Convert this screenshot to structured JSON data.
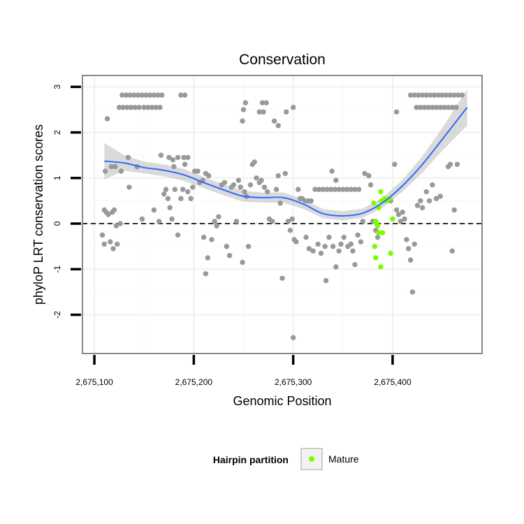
{
  "chart_data": {
    "type": "scatter",
    "title": "Conservation",
    "xlabel": "Genomic Position",
    "ylabel": "phyloP LRT conservation scores",
    "xlim": [
      2675088,
      2675490
    ],
    "ylim": [
      -2.85,
      3.25
    ],
    "x_ticks": [
      2675100,
      2675200,
      2675300,
      2675400
    ],
    "x_tick_labels": [
      "2,675,100",
      "2,675,200",
      "2,675,300",
      "2,675,400"
    ],
    "y_ticks": [
      -2,
      -1,
      0,
      1,
      2,
      3
    ],
    "y_tick_labels": [
      "-2",
      "-1",
      "0",
      "1",
      "2",
      "3"
    ],
    "grid": true,
    "reference_line": {
      "y": 0,
      "style": "dashed",
      "color": "#000000"
    },
    "legend": {
      "title": "Hairpin partition",
      "position": "bottom",
      "entries": [
        {
          "label": "Mature",
          "color": "#7cfc00"
        }
      ]
    },
    "colors": {
      "hairpin": "#999999",
      "mature": "#7cfc00",
      "smooth": "#3366ff",
      "ribbon": "#bbbbbb"
    },
    "series": [
      {
        "name": "",
        "color": "#999999",
        "points": [
          [
            2675128,
            2.82
          ],
          [
            2675132,
            2.82
          ],
          [
            2675136,
            2.82
          ],
          [
            2675140,
            2.82
          ],
          [
            2675144,
            2.82
          ],
          [
            2675148,
            2.82
          ],
          [
            2675152,
            2.82
          ],
          [
            2675156,
            2.82
          ],
          [
            2675160,
            2.82
          ],
          [
            2675164,
            2.82
          ],
          [
            2675168,
            2.82
          ],
          [
            2675125,
            2.55
          ],
          [
            2675129,
            2.55
          ],
          [
            2675133,
            2.55
          ],
          [
            2675137,
            2.55
          ],
          [
            2675141,
            2.55
          ],
          [
            2675145,
            2.55
          ],
          [
            2675150,
            2.55
          ],
          [
            2675154,
            2.55
          ],
          [
            2675158,
            2.55
          ],
          [
            2675162,
            2.55
          ],
          [
            2675166,
            2.55
          ],
          [
            2675187,
            2.82
          ],
          [
            2675191,
            2.82
          ],
          [
            2675113,
            2.3
          ],
          [
            2675111,
            1.15
          ],
          [
            2675117,
            1.25
          ],
          [
            2675121,
            1.25
          ],
          [
            2675127,
            1.15
          ],
          [
            2675134,
            1.45
          ],
          [
            2675143,
            1.25
          ],
          [
            2675167,
            1.5
          ],
          [
            2675175,
            1.45
          ],
          [
            2675179,
            1.4
          ],
          [
            2675184,
            1.45
          ],
          [
            2675190,
            1.45
          ],
          [
            2675194,
            1.45
          ],
          [
            2675110,
            0.3
          ],
          [
            2675112,
            0.25
          ],
          [
            2675114,
            0.2
          ],
          [
            2675118,
            0.25
          ],
          [
            2675120,
            0.3
          ],
          [
            2675122,
            -0.05
          ],
          [
            2675126,
            0
          ],
          [
            2675108,
            -0.25
          ],
          [
            2675110,
            -0.45
          ],
          [
            2675116,
            -0.4
          ],
          [
            2675119,
            -0.55
          ],
          [
            2675123,
            -0.45
          ],
          [
            2675135,
            0.8
          ],
          [
            2675148,
            0.1
          ],
          [
            2675160,
            0.3
          ],
          [
            2675165,
            0.05
          ],
          [
            2675170,
            0.65
          ],
          [
            2675172,
            0.75
          ],
          [
            2675174,
            0.55
          ],
          [
            2675176,
            0.35
          ],
          [
            2675178,
            0.1
          ],
          [
            2675180,
            1.25
          ],
          [
            2675181,
            0.75
          ],
          [
            2675184,
            -0.25
          ],
          [
            2675187,
            0.55
          ],
          [
            2675189,
            0.75
          ],
          [
            2675191,
            1.3
          ],
          [
            2675194,
            0.7
          ],
          [
            2675197,
            0.55
          ],
          [
            2675199,
            0.8
          ],
          [
            2675201,
            1.15
          ],
          [
            2675204,
            1.15
          ],
          [
            2675206,
            0.9
          ],
          [
            2675209,
            0.95
          ],
          [
            2675212,
            1.1
          ],
          [
            2675215,
            1.05
          ],
          [
            2675210,
            -0.3
          ],
          [
            2675212,
            -1.1
          ],
          [
            2675214,
            -0.75
          ],
          [
            2675218,
            -0.35
          ],
          [
            2675221,
            0.05
          ],
          [
            2675223,
            -0.05
          ],
          [
            2675225,
            0.15
          ],
          [
            2675228,
            0.85
          ],
          [
            2675231,
            0.9
          ],
          [
            2675233,
            -0.5
          ],
          [
            2675236,
            -0.7
          ],
          [
            2675238,
            0.8
          ],
          [
            2675240,
            0.85
          ],
          [
            2675243,
            0.05
          ],
          [
            2675245,
            0.95
          ],
          [
            2675247,
            0.8
          ],
          [
            2675249,
            -0.85
          ],
          [
            2675251,
            0.7
          ],
          [
            2675253,
            0.6
          ],
          [
            2675255,
            -0.5
          ],
          [
            2675257,
            0.85
          ],
          [
            2675259,
            1.3
          ],
          [
            2675261,
            1.35
          ],
          [
            2675263,
            1.0
          ],
          [
            2675266,
            0.9
          ],
          [
            2675268,
            0.95
          ],
          [
            2675271,
            0.8
          ],
          [
            2675274,
            0.7
          ],
          [
            2675252,
            2.65
          ],
          [
            2675250,
            2.5
          ],
          [
            2675249,
            2.25
          ],
          [
            2675269,
            2.65
          ],
          [
            2675273,
            2.65
          ],
          [
            2675266,
            2.45
          ],
          [
            2675270,
            2.45
          ],
          [
            2675281,
            2.25
          ],
          [
            2675285,
            2.15
          ],
          [
            2675293,
            2.45
          ],
          [
            2675300,
            2.55
          ],
          [
            2675276,
            0.1
          ],
          [
            2675279,
            0.05
          ],
          [
            2675283,
            0.75
          ],
          [
            2675285,
            1.05
          ],
          [
            2675287,
            0.45
          ],
          [
            2675289,
            -1.2
          ],
          [
            2675292,
            1.1
          ],
          [
            2675295,
            0.05
          ],
          [
            2675297,
            -0.15
          ],
          [
            2675299,
            0.1
          ],
          [
            2675301,
            -0.35
          ],
          [
            2675303,
            -0.4
          ],
          [
            2675305,
            0.75
          ],
          [
            2675307,
            0.55
          ],
          [
            2675309,
            0.55
          ],
          [
            2675312,
            0.5
          ],
          [
            2675315,
            0.5
          ],
          [
            2675318,
            0.5
          ],
          [
            2675322,
            0.75
          ],
          [
            2675326,
            0.75
          ],
          [
            2675330,
            0.75
          ],
          [
            2675334,
            0.75
          ],
          [
            2675338,
            0.75
          ],
          [
            2675342,
            0.75
          ],
          [
            2675346,
            0.75
          ],
          [
            2675350,
            0.75
          ],
          [
            2675354,
            0.75
          ],
          [
            2675358,
            0.75
          ],
          [
            2675362,
            0.75
          ],
          [
            2675366,
            0.75
          ],
          [
            2675313,
            -0.3
          ],
          [
            2675316,
            -0.55
          ],
          [
            2675320,
            -0.6
          ],
          [
            2675325,
            -0.45
          ],
          [
            2675328,
            -0.65
          ],
          [
            2675332,
            -0.5
          ],
          [
            2675333,
            -1.25
          ],
          [
            2675336,
            -0.3
          ],
          [
            2675340,
            -0.5
          ],
          [
            2675343,
            -0.95
          ],
          [
            2675346,
            -0.6
          ],
          [
            2675348,
            -0.45
          ],
          [
            2675351,
            -0.3
          ],
          [
            2675355,
            -0.5
          ],
          [
            2675358,
            -0.45
          ],
          [
            2675360,
            -0.6
          ],
          [
            2675362,
            -0.9
          ],
          [
            2675365,
            -0.25
          ],
          [
            2675368,
            -0.4
          ],
          [
            2675370,
            0.05
          ],
          [
            2675339,
            1.15
          ],
          [
            2675343,
            0.95
          ],
          [
            2675372,
            1.1
          ],
          [
            2675376,
            1.05
          ],
          [
            2675378,
            0.85
          ],
          [
            2675380,
            0.05
          ],
          [
            2675383,
            -0.15
          ],
          [
            2675385,
            -0.3
          ],
          [
            2675300,
            -2.5
          ],
          [
            2675398,
            0.5
          ],
          [
            2675402,
            1.3
          ],
          [
            2675404,
            0.3
          ],
          [
            2675406,
            0.2
          ],
          [
            2675408,
            0.05
          ],
          [
            2675410,
            0.25
          ],
          [
            2675412,
            0.1
          ],
          [
            2675414,
            -0.35
          ],
          [
            2675416,
            -0.55
          ],
          [
            2675418,
            -0.8
          ],
          [
            2675420,
            -1.5
          ],
          [
            2675422,
            -0.45
          ],
          [
            2675425,
            0.4
          ],
          [
            2675428,
            0.5
          ],
          [
            2675430,
            0.35
          ],
          [
            2675434,
            0.7
          ],
          [
            2675437,
            0.5
          ],
          [
            2675440,
            0.85
          ],
          [
            2675444,
            0.55
          ],
          [
            2675448,
            0.6
          ],
          [
            2675456,
            1.25
          ],
          [
            2675458,
            1.3
          ],
          [
            2675460,
            -0.6
          ],
          [
            2675462,
            0.3
          ],
          [
            2675465,
            1.3
          ],
          [
            2675404,
            2.45
          ],
          [
            2675418,
            2.82
          ],
          [
            2675422,
            2.82
          ],
          [
            2675426,
            2.82
          ],
          [
            2675430,
            2.82
          ],
          [
            2675434,
            2.82
          ],
          [
            2675438,
            2.82
          ],
          [
            2675442,
            2.82
          ],
          [
            2675446,
            2.82
          ],
          [
            2675450,
            2.82
          ],
          [
            2675454,
            2.82
          ],
          [
            2675458,
            2.82
          ],
          [
            2675462,
            2.82
          ],
          [
            2675466,
            2.82
          ],
          [
            2675470,
            2.82
          ],
          [
            2675424,
            2.55
          ],
          [
            2675428,
            2.55
          ],
          [
            2675432,
            2.55
          ],
          [
            2675436,
            2.55
          ],
          [
            2675440,
            2.55
          ],
          [
            2675444,
            2.55
          ],
          [
            2675448,
            2.55
          ],
          [
            2675452,
            2.55
          ],
          [
            2675456,
            2.55
          ],
          [
            2675460,
            2.55
          ],
          [
            2675464,
            2.55
          ]
        ]
      },
      {
        "name": "Mature",
        "color": "#7cfc00",
        "points": [
          [
            2675381,
            0.45
          ],
          [
            2675383,
            0.05
          ],
          [
            2675384,
            0.0
          ],
          [
            2675385,
            -0.05
          ],
          [
            2675382,
            -0.5
          ],
          [
            2675383,
            -0.75
          ],
          [
            2675386,
            -0.2
          ],
          [
            2675388,
            -0.95
          ],
          [
            2675388,
            0.7
          ],
          [
            2675389,
            0.5
          ],
          [
            2675390,
            -0.2
          ],
          [
            2675392,
            0.55
          ],
          [
            2675394,
            0.5
          ],
          [
            2675397,
            0.55
          ],
          [
            2675398,
            -0.65
          ],
          [
            2675400,
            0.1
          ],
          [
            2675386,
            0.35
          ]
        ]
      }
    ],
    "smooth_line": {
      "x": [
        2675110,
        2675130,
        2675150,
        2675170,
        2675190,
        2675210,
        2675230,
        2675250,
        2675270,
        2675290,
        2675310,
        2675330,
        2675350,
        2675370,
        2675390,
        2675410,
        2675430,
        2675450,
        2675475
      ],
      "y": [
        1.37,
        1.33,
        1.23,
        1.17,
        1.07,
        0.9,
        0.74,
        0.6,
        0.57,
        0.57,
        0.43,
        0.22,
        0.17,
        0.23,
        0.46,
        0.83,
        1.3,
        1.85,
        2.55
      ],
      "upper": [
        1.77,
        1.5,
        1.36,
        1.3,
        1.2,
        1.02,
        0.86,
        0.72,
        0.68,
        0.68,
        0.54,
        0.32,
        0.27,
        0.33,
        0.57,
        0.96,
        1.48,
        2.1,
        2.95
      ],
      "lower": [
        0.97,
        1.16,
        1.1,
        1.04,
        0.94,
        0.78,
        0.62,
        0.48,
        0.46,
        0.46,
        0.32,
        0.12,
        0.07,
        0.13,
        0.35,
        0.7,
        1.12,
        1.6,
        2.15
      ]
    }
  }
}
